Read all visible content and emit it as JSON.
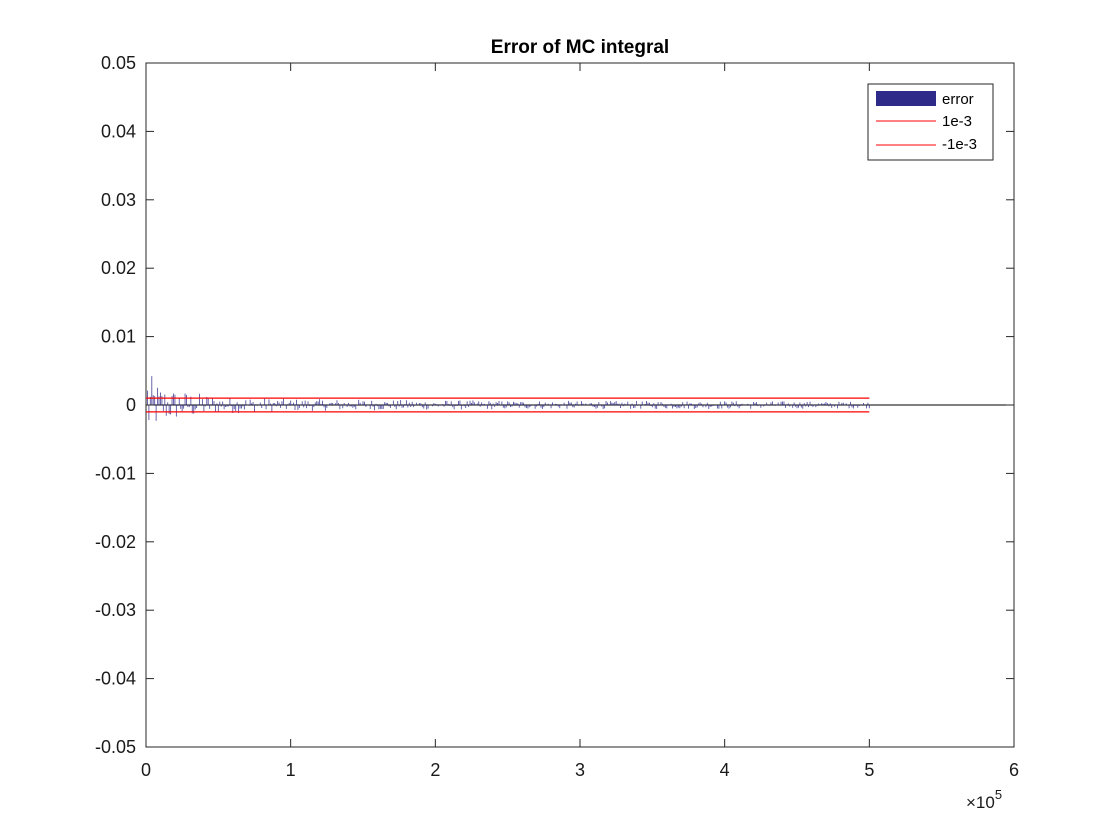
{
  "chart_data": {
    "type": "bar",
    "title": "Error of MC integral",
    "xlabel": "",
    "ylabel": "",
    "xlim": [
      0,
      600000
    ],
    "ylim": [
      -0.05,
      0.05
    ],
    "x_ticks": [
      0,
      100000,
      200000,
      300000,
      400000,
      500000,
      600000
    ],
    "x_tick_labels": [
      "0",
      "1",
      "2",
      "3",
      "4",
      "5",
      "6"
    ],
    "x_exponent_label": "×10",
    "x_exponent_power": "5",
    "y_ticks": [
      -0.05,
      -0.04,
      -0.03,
      -0.02,
      -0.01,
      0,
      0.01,
      0.02,
      0.03,
      0.04,
      0.05
    ],
    "y_tick_labels": [
      "-0.05",
      "-0.04",
      "-0.03",
      "-0.02",
      "-0.01",
      "0",
      "0.01",
      "0.02",
      "0.03",
      "0.04",
      "0.05"
    ],
    "grid": false,
    "legend_position": "top-right",
    "zero_line": true,
    "series": [
      {
        "name": "error",
        "kind": "bar",
        "color": "#2e2a8a",
        "x_range": [
          1000,
          500000
        ],
        "count": 500,
        "envelope": [
          {
            "x": 1000,
            "amp": 0.0068
          },
          {
            "x": 3000,
            "amp": 0.0045
          },
          {
            "x": 10000,
            "amp": 0.0028
          },
          {
            "x": 20000,
            "amp": 0.0022
          },
          {
            "x": 35000,
            "amp": 0.0018
          },
          {
            "x": 50000,
            "amp": 0.0013
          },
          {
            "x": 75000,
            "amp": 0.0011
          },
          {
            "x": 100000,
            "amp": 0.0009
          },
          {
            "x": 150000,
            "amp": 0.0008
          },
          {
            "x": 200000,
            "amp": 0.0007
          },
          {
            "x": 300000,
            "amp": 0.0006
          },
          {
            "x": 400000,
            "amp": 0.0006
          },
          {
            "x": 500000,
            "amp": 0.0005
          }
        ]
      },
      {
        "name": "1e-3",
        "kind": "line",
        "color": "#ff0000",
        "x": [
          0,
          500000
        ],
        "y": [
          0.001,
          0.001
        ]
      },
      {
        "name": "-1e-3",
        "kind": "line",
        "color": "#ff0000",
        "x": [
          0,
          500000
        ],
        "y": [
          -0.001,
          -0.001
        ]
      }
    ]
  }
}
